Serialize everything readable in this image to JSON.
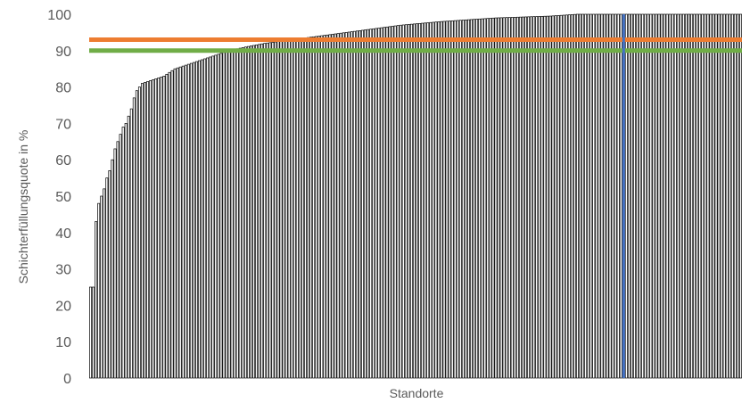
{
  "chart_data": {
    "type": "bar",
    "title": "",
    "xlabel": "Standorte",
    "ylabel": "Schichterfüllungsquote in %",
    "ylim": [
      0,
      100
    ],
    "yticks": [
      "0",
      "10",
      "20",
      "30",
      "40",
      "50",
      "60",
      "70",
      "80",
      "90",
      "100"
    ],
    "grid": true,
    "legend": "none",
    "bar_count": 240,
    "bar_color": "#ffffff",
    "bar_edge_color": "#000000",
    "values_sorted_ascending_sample": [
      {
        "x": 1,
        "y": 25
      },
      {
        "x": 2,
        "y": 25
      },
      {
        "x": 3,
        "y": 43
      },
      {
        "x": 4,
        "y": 48
      },
      {
        "x": 5,
        "y": 50
      },
      {
        "x": 6,
        "y": 52
      },
      {
        "x": 7,
        "y": 55
      },
      {
        "x": 8,
        "y": 57
      },
      {
        "x": 9,
        "y": 60
      },
      {
        "x": 10,
        "y": 63
      },
      {
        "x": 11,
        "y": 65
      },
      {
        "x": 12,
        "y": 67
      },
      {
        "x": 13,
        "y": 69
      },
      {
        "x": 14,
        "y": 70
      },
      {
        "x": 15,
        "y": 72
      },
      {
        "x": 16,
        "y": 74
      },
      {
        "x": 17,
        "y": 77
      },
      {
        "x": 18,
        "y": 79
      },
      {
        "x": 19,
        "y": 80
      },
      {
        "x": 20,
        "y": 81
      },
      {
        "x": 24,
        "y": 82
      },
      {
        "x": 28,
        "y": 83
      },
      {
        "x": 32,
        "y": 85
      },
      {
        "x": 36,
        "y": 86
      },
      {
        "x": 40,
        "y": 87
      },
      {
        "x": 44,
        "y": 88
      },
      {
        "x": 48,
        "y": 89
      },
      {
        "x": 52,
        "y": 90
      },
      {
        "x": 58,
        "y": 91
      },
      {
        "x": 65,
        "y": 92
      },
      {
        "x": 75,
        "y": 93
      },
      {
        "x": 85,
        "y": 94
      },
      {
        "x": 95,
        "y": 95
      },
      {
        "x": 105,
        "y": 96
      },
      {
        "x": 115,
        "y": 97
      },
      {
        "x": 130,
        "y": 98
      },
      {
        "x": 150,
        "y": 99
      },
      {
        "x": 170,
        "y": 99.5
      },
      {
        "x": 180,
        "y": 100
      },
      {
        "x": 240,
        "y": 100
      }
    ],
    "reference_lines": [
      {
        "y": 93,
        "color": "#ED7D31"
      },
      {
        "y": 90,
        "color": "#70AD47"
      }
    ],
    "highlight": {
      "x": 197,
      "color": "#4472C4"
    }
  }
}
